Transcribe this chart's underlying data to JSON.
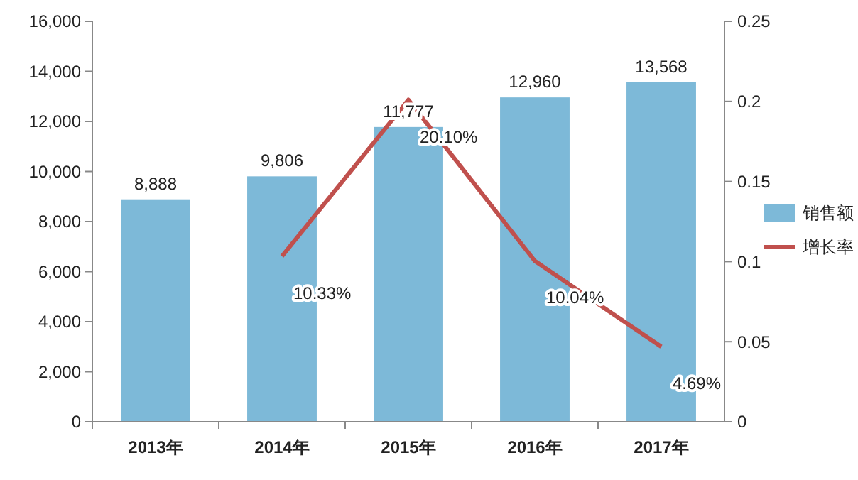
{
  "chart_data": {
    "type": "bar",
    "categories": [
      "2013年",
      "2014年",
      "2015年",
      "2016年",
      "2017年"
    ],
    "series": [
      {
        "name": "销售额",
        "color": "#7db9d8",
        "values": [
          8888,
          9806,
          11777,
          12960,
          13568
        ],
        "value_labels": [
          "8,888",
          "9,806",
          "11,777",
          "12,960",
          "13,568"
        ]
      },
      {
        "name": "增长率",
        "type": "line",
        "axis": "y2",
        "color": "#c0504d",
        "values": [
          null,
          0.1033,
          0.201,
          0.1004,
          0.0469
        ],
        "value_labels": [
          null,
          "10.33%",
          "20.10%",
          "10.04%",
          "4.69%"
        ]
      }
    ],
    "ylim": [
      0,
      16000
    ],
    "yticks": [
      0,
      {
        "value": 2000,
        "label": "2,000"
      },
      {
        "value": 4000,
        "label": "4,000"
      },
      {
        "value": 6000,
        "label": "6,000"
      },
      {
        "value": 8000,
        "label": "8,000"
      },
      {
        "value": 10000,
        "label": "10,000"
      },
      {
        "value": 12000,
        "label": "12,000"
      },
      {
        "value": 14000,
        "label": "14,000"
      },
      {
        "value": 16000,
        "label": "16,000"
      }
    ],
    "y2lim": [
      0,
      0.25
    ],
    "y2ticks": [
      0,
      0.05,
      0.1,
      0.15,
      0.2,
      0.25
    ],
    "legend": "right",
    "grid": false
  }
}
